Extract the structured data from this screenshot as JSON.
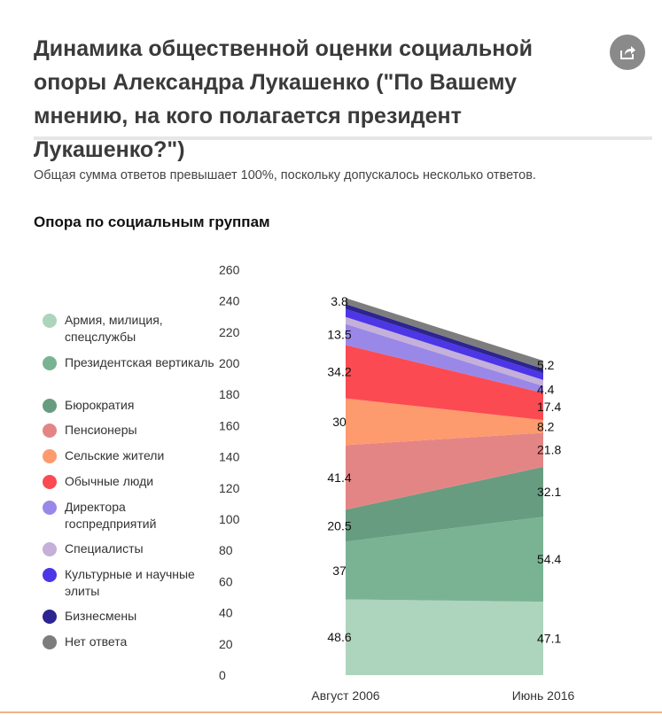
{
  "header": {
    "title": "Динамика общественной оценки социальной опоры Александра Лукашенко (\"По Вашему мнению, на кого полагается президент Лукашенко?\")",
    "note": "Общая сумма ответов превышает 100%, поскольку допускалось несколько ответов.",
    "subtitle": "Опора по социальным группам",
    "share_icon": "share-icon"
  },
  "chart_data": {
    "type": "area",
    "stacked": true,
    "categories": [
      "Август 2006",
      "Июнь 2016"
    ],
    "ylim": [
      0,
      260
    ],
    "yticks": [
      0,
      20,
      40,
      60,
      80,
      100,
      120,
      140,
      160,
      180,
      200,
      220,
      240,
      260
    ],
    "grid": false,
    "legend_position": "left",
    "series": [
      {
        "name": "Армия, милиция, спецслужбы",
        "color": "#add4bc",
        "values": [
          48.6,
          47.1
        ]
      },
      {
        "name": "Президентская вертикаль",
        "color": "#79b394",
        "values": [
          37,
          54.4
        ]
      },
      {
        "name": "Бюрократия",
        "color": "#689c80",
        "values": [
          20.5,
          32.1
        ]
      },
      {
        "name": "Пенсионеры",
        "color": "#e48585",
        "values": [
          41.4,
          21.8
        ]
      },
      {
        "name": "Сельские жители",
        "color": "#fd9a6e",
        "values": [
          30,
          8.2
        ]
      },
      {
        "name": "Обычные люди",
        "color": "#fb4a52",
        "values": [
          34.2,
          17.4
        ]
      },
      {
        "name": "Директора госпредприятий",
        "color": "#9a88e8",
        "values": [
          13.5,
          4.4
        ]
      },
      {
        "name": "Специалисты",
        "color": "#c4b0d8",
        "values": [
          4.5,
          3.9
        ]
      },
      {
        "name": "Культурные и научные элиты",
        "color": "#4c36e6",
        "values": [
          5.2,
          4.3
        ]
      },
      {
        "name": "Бизнесмены",
        "color": "#2c2490",
        "values": [
          3.1,
          2.8
        ]
      },
      {
        "name": "Нет ответа",
        "color": "#7d7d7d",
        "values": [
          3.8,
          5.2
        ]
      }
    ],
    "data_labels": {
      "left": [
        {
          "series": 0,
          "text": "48.6"
        },
        {
          "series": 1,
          "text": "37"
        },
        {
          "series": 2,
          "text": "20.5"
        },
        {
          "series": 3,
          "text": "41.4"
        },
        {
          "series": 4,
          "text": "30"
        },
        {
          "series": 5,
          "text": "34.2"
        },
        {
          "series": 6,
          "text": "13.5"
        },
        {
          "series": 10,
          "text": "3.8"
        }
      ],
      "right": [
        {
          "series": 0,
          "text": "47.1"
        },
        {
          "series": 1,
          "text": "54.4"
        },
        {
          "series": 2,
          "text": "32.1"
        },
        {
          "series": 3,
          "text": "21.8"
        },
        {
          "series": 4,
          "text": "8.2"
        },
        {
          "series": 5,
          "text": "17.4"
        },
        {
          "series": 6,
          "text": "4.4"
        },
        {
          "series": 10,
          "text": "5.2"
        }
      ]
    }
  }
}
